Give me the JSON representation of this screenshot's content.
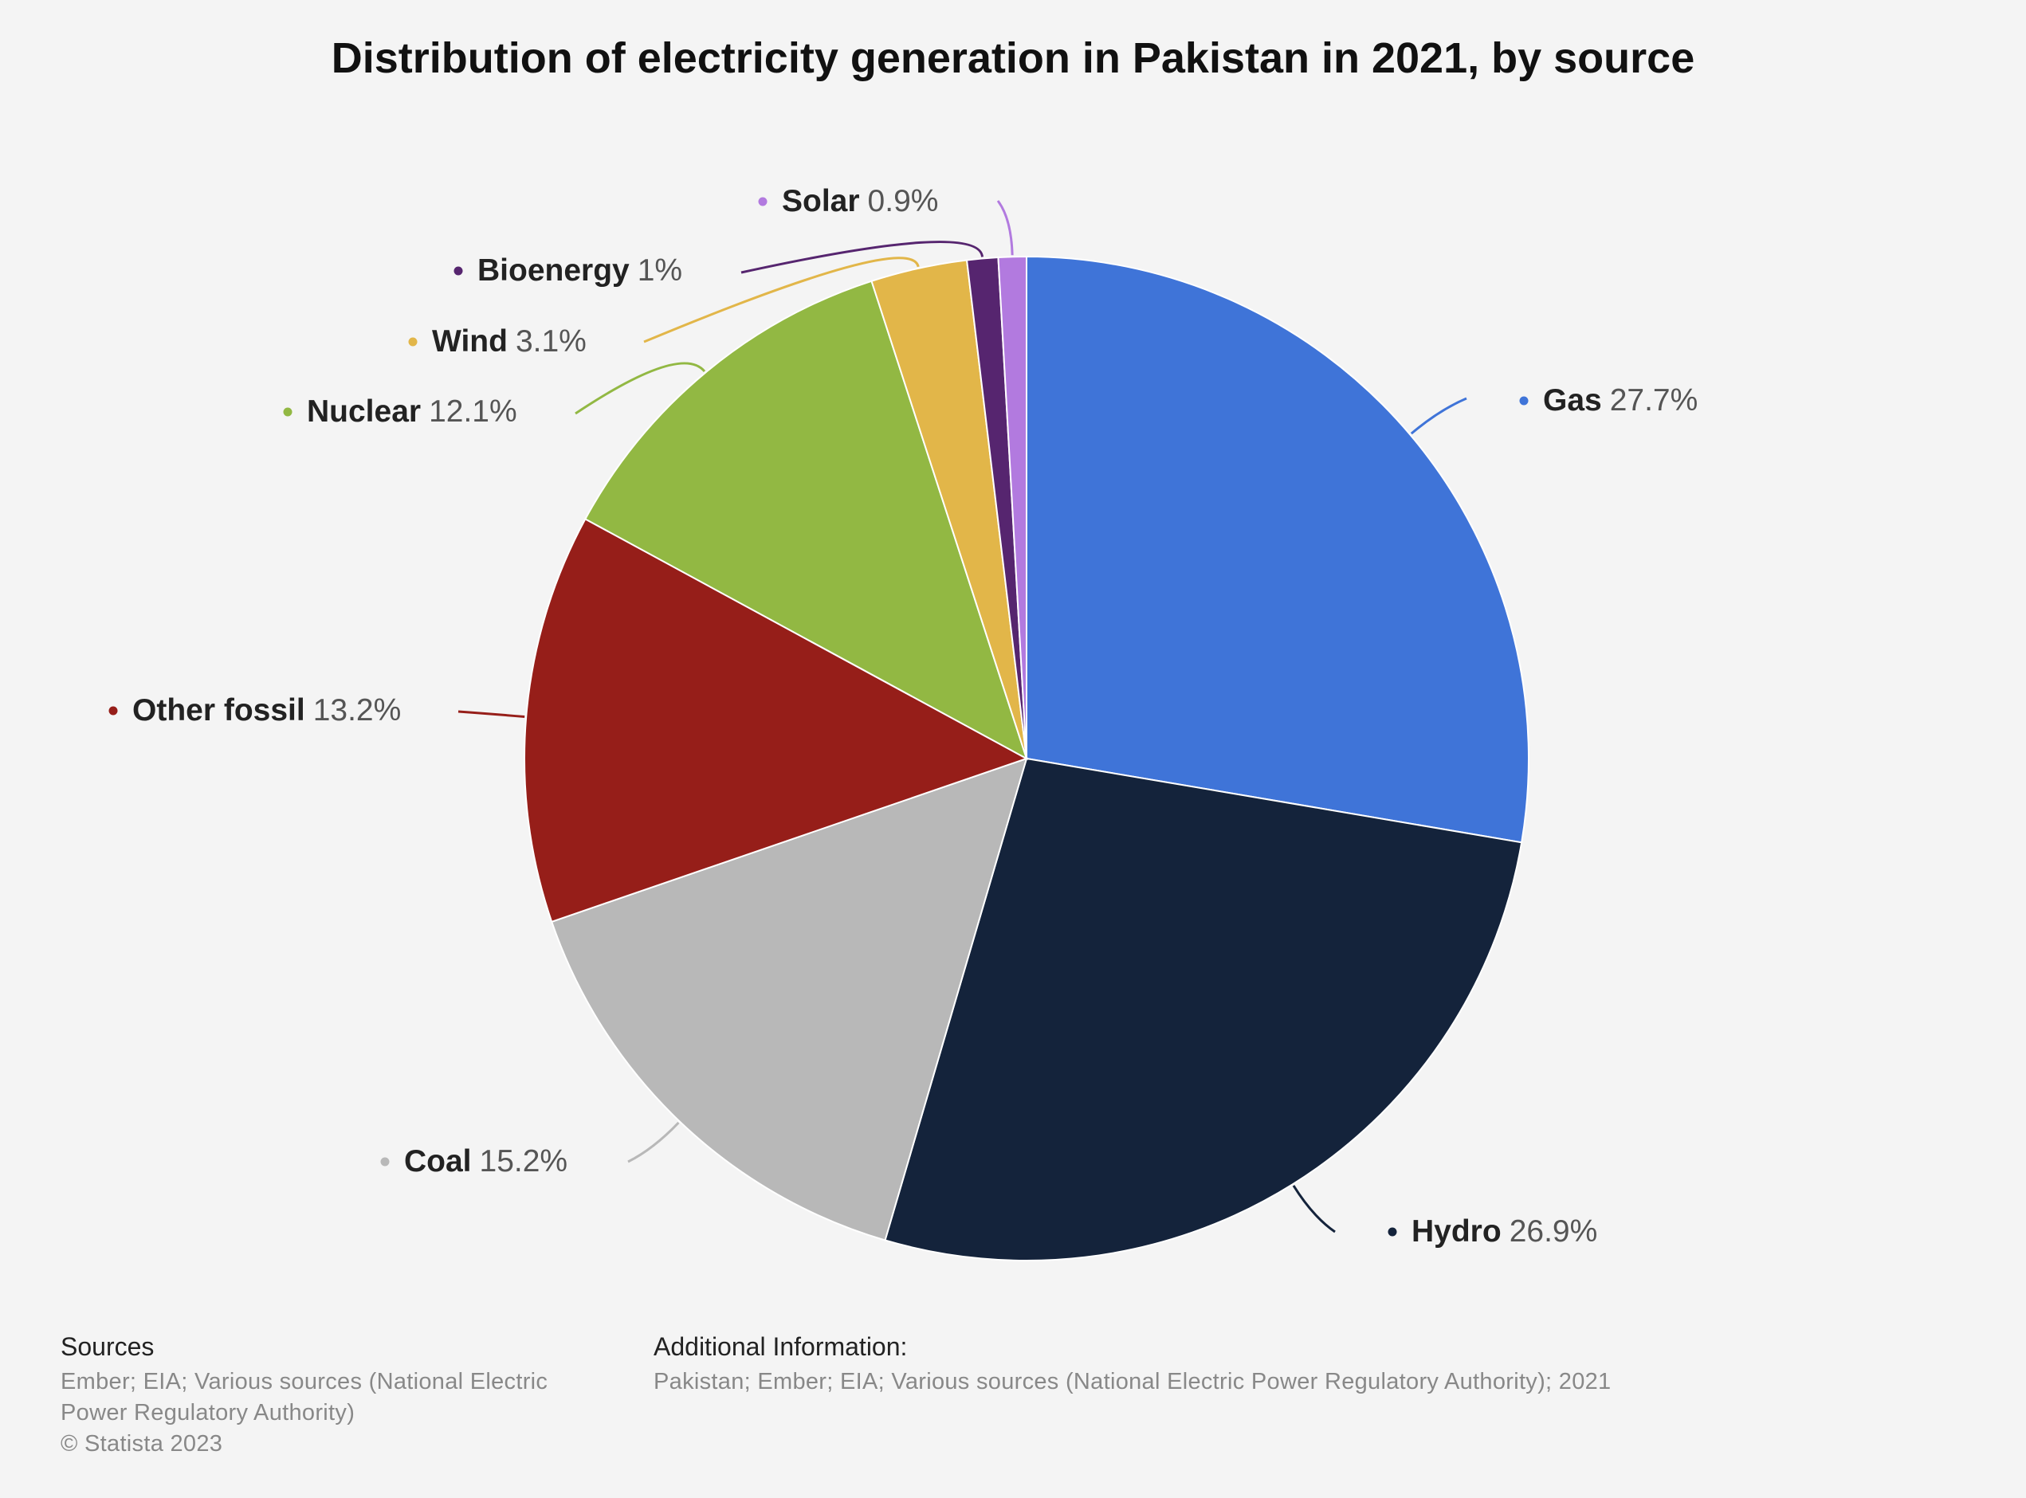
{
  "chart_data": {
    "type": "pie",
    "title": "Distribution of electricity generation in Pakistan in 2021, by source",
    "unit": "%",
    "slices": [
      {
        "name": "Gas",
        "value": 27.7,
        "label": "27.7%",
        "color": "#3f74d8"
      },
      {
        "name": "Hydro",
        "value": 26.9,
        "label": "26.9%",
        "color": "#14233b"
      },
      {
        "name": "Coal",
        "value": 15.2,
        "label": "15.2%",
        "color": "#b8b8b8"
      },
      {
        "name": "Other fossil",
        "value": 13.2,
        "label": "13.2%",
        "color": "#961e19"
      },
      {
        "name": "Nuclear",
        "value": 12.1,
        "label": "12.1%",
        "color": "#92b843"
      },
      {
        "name": "Wind",
        "value": 3.1,
        "label": "3.1%",
        "color": "#e2b649"
      },
      {
        "name": "Bioenergy",
        "value": 1,
        "label": "1%",
        "color": "#56256f"
      },
      {
        "name": "Solar",
        "value": 0.9,
        "label": "0.9%",
        "color": "#b27adf"
      }
    ]
  },
  "footer": {
    "sources_heading": "Sources",
    "sources_lines": [
      "Ember; EIA; Various sources (National Electric",
      "Power Regulatory Authority)"
    ],
    "copyright": "© Statista 2023",
    "additional_heading": "Additional Information:",
    "additional_text": "Pakistan; Ember; EIA; Various sources (National Electric Power Regulatory Authority); 2021"
  }
}
